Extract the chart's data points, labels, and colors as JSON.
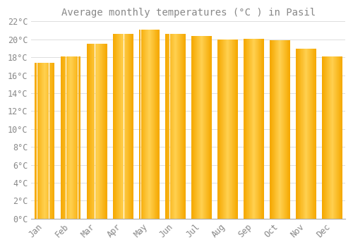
{
  "title": "Average monthly temperatures (°C ) in Pasil",
  "months": [
    "Jan",
    "Feb",
    "Mar",
    "Apr",
    "May",
    "Jun",
    "Jul",
    "Aug",
    "Sep",
    "Oct",
    "Nov",
    "Dec"
  ],
  "values": [
    17.4,
    18.1,
    19.5,
    20.6,
    21.1,
    20.6,
    20.4,
    20.0,
    20.1,
    19.9,
    19.0,
    18.1
  ],
  "bar_color_center": "#FFD050",
  "bar_color_edge": "#F5A800",
  "background_color": "#FFFFFF",
  "grid_color": "#DDDDDD",
  "text_color": "#888888",
  "spine_color": "#AAAAAA",
  "ylim": [
    0,
    22
  ],
  "ytick_step": 2,
  "title_fontsize": 10,
  "tick_fontsize": 8.5,
  "bar_width": 0.75
}
